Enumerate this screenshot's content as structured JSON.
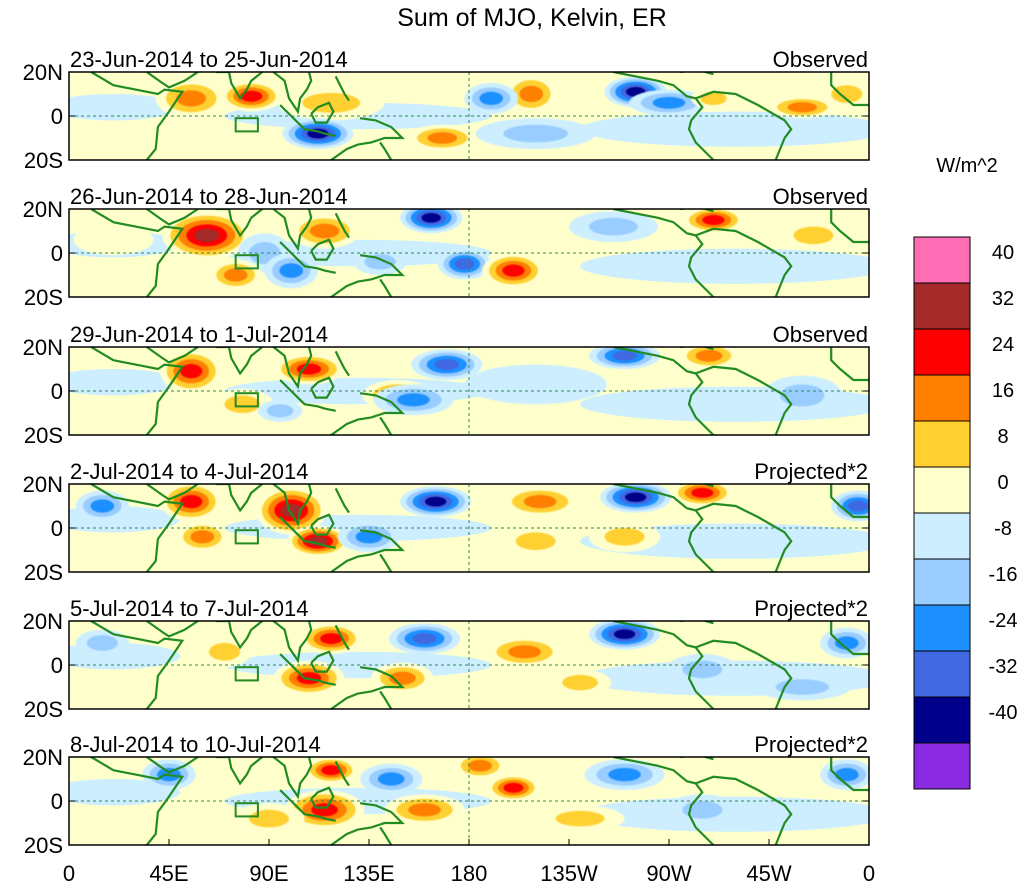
{
  "chart_data": {
    "type": "heatmap",
    "title": "Sum of MJO, Kelvin, ER",
    "colorbar": {
      "label": "W/m^2",
      "ticks": [
        "40",
        "32",
        "24",
        "16",
        "8",
        "0",
        "-8",
        "-16",
        "-24",
        "-32",
        "-40"
      ],
      "colors": [
        "#ff6eb4",
        "#a52a2a",
        "#ff0000",
        "#ff7f00",
        "#ffd030",
        "#ffffcc",
        "#cceeff",
        "#99ccff",
        "#1e90ff",
        "#4169e1",
        "#00008b",
        "#8a2be2"
      ]
    },
    "x_ticks": [
      "0",
      "45E",
      "90E",
      "135E",
      "180",
      "135W",
      "90W",
      "45W",
      "0"
    ],
    "y_ticks": [
      "20N",
      "0",
      "20S"
    ],
    "lon_range": [
      0,
      360
    ],
    "lat_range": [
      -20,
      20
    ],
    "panels": [
      {
        "dates": "23-Jun-2014 to 25-Jun-2014",
        "type": "Observed",
        "blobs": [
          {
            "lon": 55,
            "lat": 8,
            "w": 14,
            "h": 8,
            "v": 20
          },
          {
            "lon": 82,
            "lat": 9,
            "w": 12,
            "h": 6,
            "v": 26
          },
          {
            "lon": 118,
            "lat": 6,
            "w": 22,
            "h": 7,
            "v": 14
          },
          {
            "lon": 112,
            "lat": -8,
            "w": 14,
            "h": 6,
            "v": -34
          },
          {
            "lon": 168,
            "lat": -10,
            "w": 14,
            "h": 5,
            "v": 22
          },
          {
            "lon": 208,
            "lat": 10,
            "w": 10,
            "h": 8,
            "v": 24
          },
          {
            "lon": 190,
            "lat": 8,
            "w": 10,
            "h": 6,
            "v": -24
          },
          {
            "lon": 255,
            "lat": 11,
            "w": 12,
            "h": 6,
            "v": -36
          },
          {
            "lon": 270,
            "lat": 6,
            "w": 16,
            "h": 5,
            "v": -18
          },
          {
            "lon": 290,
            "lat": 8,
            "w": 8,
            "h": 4,
            "v": 14
          },
          {
            "lon": 330,
            "lat": 4,
            "w": 14,
            "h": 4,
            "v": 20
          },
          {
            "lon": 350,
            "lat": 10,
            "w": 10,
            "h": 6,
            "v": 14
          },
          {
            "lon": 210,
            "lat": -8,
            "w": 25,
            "h": 6,
            "v": -10
          },
          {
            "lon": 30,
            "lat": -12,
            "w": 25,
            "h": 6,
            "v": 8
          }
        ]
      },
      {
        "dates": "26-Jun-2014 to 28-Jun-2014",
        "type": "Observed",
        "blobs": [
          {
            "lon": 62,
            "lat": 8,
            "w": 18,
            "h": 10,
            "v": 42
          },
          {
            "lon": 88,
            "lat": 0,
            "w": 10,
            "h": 8,
            "v": -14
          },
          {
            "lon": 115,
            "lat": 10,
            "w": 14,
            "h": 7,
            "v": 24
          },
          {
            "lon": 163,
            "lat": 16,
            "w": 12,
            "h": 6,
            "v": -40
          },
          {
            "lon": 178,
            "lat": -5,
            "w": 10,
            "h": 6,
            "v": -26
          },
          {
            "lon": 200,
            "lat": -8,
            "w": 12,
            "h": 7,
            "v": 26
          },
          {
            "lon": 75,
            "lat": -10,
            "w": 10,
            "h": 6,
            "v": 22
          },
          {
            "lon": 100,
            "lat": -8,
            "w": 10,
            "h": 7,
            "v": -22
          },
          {
            "lon": 140,
            "lat": -4,
            "w": 10,
            "h": 5,
            "v": -12
          },
          {
            "lon": 290,
            "lat": 15,
            "w": 12,
            "h": 5,
            "v": 26
          },
          {
            "lon": 245,
            "lat": 12,
            "w": 18,
            "h": 6,
            "v": -14
          },
          {
            "lon": 335,
            "lat": 8,
            "w": 14,
            "h": 6,
            "v": 12
          },
          {
            "lon": 20,
            "lat": 6,
            "w": 16,
            "h": 6,
            "v": 8
          }
        ]
      },
      {
        "dates": "29-Jun-2014 to 1-Jul-2014",
        "type": "Observed",
        "blobs": [
          {
            "lon": 55,
            "lat": 9,
            "w": 12,
            "h": 9,
            "v": 28
          },
          {
            "lon": 108,
            "lat": 10,
            "w": 14,
            "h": 6,
            "v": 26
          },
          {
            "lon": 148,
            "lat": -2,
            "w": 14,
            "h": 6,
            "v": 20
          },
          {
            "lon": 170,
            "lat": 12,
            "w": 14,
            "h": 6,
            "v": -28
          },
          {
            "lon": 155,
            "lat": -4,
            "w": 16,
            "h": 6,
            "v": -22
          },
          {
            "lon": 250,
            "lat": 16,
            "w": 14,
            "h": 5,
            "v": -30
          },
          {
            "lon": 288,
            "lat": 16,
            "w": 12,
            "h": 5,
            "v": 24
          },
          {
            "lon": 78,
            "lat": -6,
            "w": 12,
            "h": 6,
            "v": 14
          },
          {
            "lon": 95,
            "lat": -9,
            "w": 8,
            "h": 4,
            "v": -16
          },
          {
            "lon": 330,
            "lat": -2,
            "w": 16,
            "h": 8,
            "v": -12
          },
          {
            "lon": 210,
            "lat": 3,
            "w": 30,
            "h": 8,
            "v": -8
          }
        ]
      },
      {
        "dates": "2-Jul-2014 to 4-Jul-2014",
        "type": "Projected*2",
        "blobs": [
          {
            "lon": 55,
            "lat": 12,
            "w": 12,
            "h": 8,
            "v": 26
          },
          {
            "lon": 100,
            "lat": 8,
            "w": 14,
            "h": 10,
            "v": 34
          },
          {
            "lon": 112,
            "lat": -6,
            "w": 12,
            "h": 6,
            "v": 42
          },
          {
            "lon": 165,
            "lat": 12,
            "w": 14,
            "h": 6,
            "v": -40
          },
          {
            "lon": 255,
            "lat": 14,
            "w": 14,
            "h": 6,
            "v": -42
          },
          {
            "lon": 285,
            "lat": 16,
            "w": 12,
            "h": 5,
            "v": 26
          },
          {
            "lon": 212,
            "lat": 12,
            "w": 16,
            "h": 6,
            "v": 18
          },
          {
            "lon": 15,
            "lat": 10,
            "w": 10,
            "h": 6,
            "v": -18
          },
          {
            "lon": 355,
            "lat": 10,
            "w": 10,
            "h": 6,
            "v": -30
          },
          {
            "lon": 210,
            "lat": -6,
            "w": 14,
            "h": 6,
            "v": 16
          },
          {
            "lon": 250,
            "lat": -4,
            "w": 14,
            "h": 6,
            "v": 14
          },
          {
            "lon": 135,
            "lat": -4,
            "w": 12,
            "h": 6,
            "v": -20
          },
          {
            "lon": 60,
            "lat": -4,
            "w": 10,
            "h": 6,
            "v": 18
          }
        ]
      },
      {
        "dates": "5-Jul-2014 to 7-Jul-2014",
        "type": "Projected*2",
        "blobs": [
          {
            "lon": 108,
            "lat": -6,
            "w": 14,
            "h": 7,
            "v": 30
          },
          {
            "lon": 118,
            "lat": 12,
            "w": 12,
            "h": 6,
            "v": 32
          },
          {
            "lon": 160,
            "lat": 12,
            "w": 14,
            "h": 6,
            "v": -26
          },
          {
            "lon": 205,
            "lat": 6,
            "w": 16,
            "h": 6,
            "v": 20
          },
          {
            "lon": 250,
            "lat": 14,
            "w": 14,
            "h": 6,
            "v": -40
          },
          {
            "lon": 285,
            "lat": -2,
            "w": 14,
            "h": 6,
            "v": -16
          },
          {
            "lon": 150,
            "lat": -6,
            "w": 12,
            "h": 6,
            "v": 22
          },
          {
            "lon": 70,
            "lat": 6,
            "w": 10,
            "h": 6,
            "v": 12
          },
          {
            "lon": 15,
            "lat": 10,
            "w": 10,
            "h": 5,
            "v": -14
          },
          {
            "lon": 350,
            "lat": 10,
            "w": 10,
            "h": 6,
            "v": -22
          },
          {
            "lon": 230,
            "lat": -8,
            "w": 12,
            "h": 5,
            "v": 14
          },
          {
            "lon": 330,
            "lat": -10,
            "w": 20,
            "h": 5,
            "v": -10
          }
        ]
      },
      {
        "dates": "8-Jul-2014 to 10-Jul-2014",
        "type": "Projected*2",
        "blobs": [
          {
            "lon": 115,
            "lat": -4,
            "w": 16,
            "h": 8,
            "v": 28
          },
          {
            "lon": 118,
            "lat": 14,
            "w": 10,
            "h": 5,
            "v": 30
          },
          {
            "lon": 160,
            "lat": -4,
            "w": 16,
            "h": 6,
            "v": 24
          },
          {
            "lon": 200,
            "lat": 6,
            "w": 10,
            "h": 5,
            "v": 28
          },
          {
            "lon": 145,
            "lat": 10,
            "w": 12,
            "h": 6,
            "v": -22
          },
          {
            "lon": 250,
            "lat": 12,
            "w": 16,
            "h": 6,
            "v": -24
          },
          {
            "lon": 285,
            "lat": -4,
            "w": 14,
            "h": 6,
            "v": -14
          },
          {
            "lon": 45,
            "lat": 12,
            "w": 10,
            "h": 6,
            "v": -18
          },
          {
            "lon": 90,
            "lat": -8,
            "w": 14,
            "h": 6,
            "v": 16
          },
          {
            "lon": 350,
            "lat": 12,
            "w": 10,
            "h": 6,
            "v": -20
          },
          {
            "lon": 185,
            "lat": 16,
            "w": 10,
            "h": 5,
            "v": 18
          },
          {
            "lon": 230,
            "lat": -8,
            "w": 18,
            "h": 5,
            "v": 10
          }
        ]
      }
    ]
  }
}
